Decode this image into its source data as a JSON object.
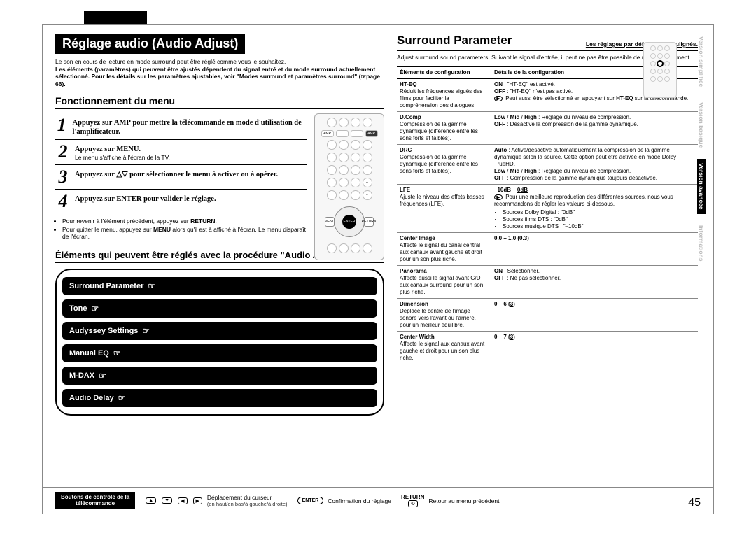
{
  "page_number": "45",
  "top_tab_present": true,
  "left": {
    "title": "Réglage audio (Audio Adjust)",
    "intro": "Le son en cours de lecture en mode surround peut être réglé comme vous le souhaitez.\nLes éléments (paramètres) qui peuvent être ajustés dépendent du signal entré et du mode surround actuellement sélectionné. Pour les détails sur les paramètres ajustables, voir \"Modes surround et paramètres surround\" (☞page 66).",
    "menu_head": "Fonctionnement du menu",
    "steps": [
      {
        "n": "1",
        "text": "Appuyez sur AMP pour mettre la télécommande en mode d'utilisation de l'amplificateur.",
        "sub": ""
      },
      {
        "n": "2",
        "text": "Appuyez sur MENU.",
        "sub": "Le menu s'affiche à l'écran de la TV."
      },
      {
        "n": "3",
        "text": "Appuyez sur △▽ pour sélectionner le menu à activer ou à opérer.",
        "sub": ""
      },
      {
        "n": "4",
        "text": "Appuyez sur ENTER pour valider le réglage.",
        "sub": ""
      }
    ],
    "notes": [
      "Pour revenir à l'élément précédent, appuyez sur RETURN.",
      "Pour quitter le menu, appuyez sur MENU alors qu'il est à affiché à l'écran. Le menu disparaît de l'écran."
    ],
    "panel_head": "Éléments qui peuvent être réglés avec la procédure \"Audio Adjust\"",
    "menu_items": [
      "Surround Parameter ☞",
      "Tone ☞",
      "Audyssey Settings ☞",
      "Manual EQ ☞",
      "M-DAX ☞",
      "Audio Delay ☞"
    ]
  },
  "right": {
    "title": "Surround Parameter",
    "defaults_note": "Les réglages par défaut sont soulignés.",
    "intro": "Adjust surround sound parameters. Suivant le signal d'entrée, il peut ne pas être possible de régler cet élément.",
    "th_left": "Éléments de configuration",
    "th_right": "Détails de la configuration",
    "rows": [
      {
        "name": "HT-EQ",
        "desc": "Réduit les fréquences aiguës des films pour faciliter la compréhension des dialogues.",
        "details": "<b>ON</b> : \"HT-EQ\" est activé.<br><b>OFF</b> : \"HT-EQ\" n'est pas activé.<br><span class=\"tip\">▶</span> Peut aussi être sélectionné en appuyant sur <b>HT-EQ</b> sur la télécommande."
      },
      {
        "name": "D.Comp",
        "desc": "Compression de la gamme dynamique (différence entre les sons forts et faibles).",
        "details": "<b>Low</b> / <b>Mid</b> / <b>High</b> : Réglage du niveau de compression.<br><b>OFF</b> : Désactive la compression de la gamme dynamique."
      },
      {
        "name": "DRC",
        "desc": "Compression de la gamme dynamique (différence entre les sons forts et faibles).",
        "details": "<b>Auto</b> : Active/désactive automatiquement la compression de la gamme dynamique selon la source. Cette option peut être activée en mode Dolby TrueHD.<br><b>Low</b> / <b>Mid</b> / <b>High</b> : Réglage du niveau de compression.<br><b>OFF</b> : Compression de la gamme dynamique toujours désactivée."
      },
      {
        "name": "LFE",
        "desc": "Ajuste le niveau des effets basses fréquences (LFE).",
        "details": "<b>–10dB – <u>0dB</u></b><br><span class=\"tip\">▶</span> Pour une meilleure reproduction des différentes sources, nous vous recommandons de régler les valeurs ci-dessous.<ul class=\"src\"><li>Sources Dolby Digital : \"0dB\"</li><li>Sources films DTS : \"0dB\"</li><li>Sources musique DTS : \"–10dB\"</li></ul>"
      },
      {
        "name": "Center Image",
        "desc": "Affecte le signal du canal central aux canaux avant gauche et droit pour un son plus riche.",
        "details": "<b>0.0 – 1.0 (<u>0.3</u>)</b>"
      },
      {
        "name": "Panorama",
        "desc": "Affecte aussi le signal avant G/D aux canaux surround pour un son plus riche.",
        "details": "<b>ON</b> : Sélectionner.<br><b>OFF</b> : Ne pas sélectionner."
      },
      {
        "name": "Dimension",
        "desc": "Déplace le centre de l'image sonore vers l'avant ou l'arrière, pour un meilleur équilibre.",
        "details": "<b>0 – 6 (<u>3</u>)</b>"
      },
      {
        "name": "Center Width",
        "desc": "Affecte le signal aux canaux avant gauche et droit pour un son plus riche.",
        "details": "<b>0 – 7 (<u>3</u>)</b>"
      }
    ]
  },
  "side_tabs": [
    {
      "label": "Version simplifiée",
      "active": false
    },
    {
      "label": "Version basique",
      "active": false
    },
    {
      "label": "Version avancée",
      "active": true
    },
    {
      "label": "Informations",
      "active": false
    }
  ],
  "footer": {
    "label": "Boutons de contrôle de la\ntélécommande",
    "cursor": "Déplacement du curseur",
    "cursor_sub": "(en haut/en bas/à gauche/à droite)",
    "enter": "Confirmation du réglage",
    "return_label": "RETURN",
    "return": "Retour au menu précédent"
  }
}
